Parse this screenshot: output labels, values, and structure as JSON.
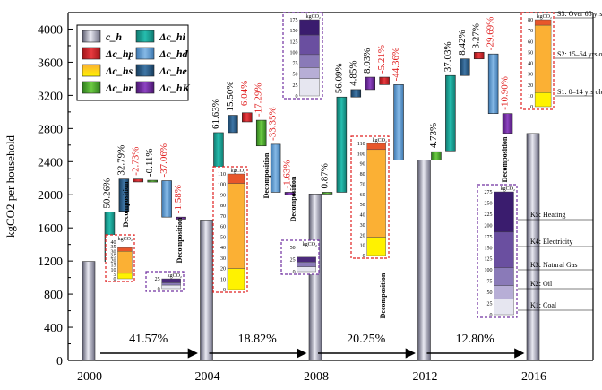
{
  "chart_data": {
    "type": "bar",
    "subtype": "waterfall-decomposition",
    "ylabel": "kgCO2 per household",
    "ylim": [
      0,
      4200
    ],
    "yticks": [
      0,
      400,
      800,
      1200,
      1600,
      2000,
      2400,
      2800,
      3200,
      3600,
      4000
    ],
    "xticks": [
      "2000",
      "2004",
      "2008",
      "2012",
      "2016"
    ],
    "legend": {
      "placement": "top-left",
      "items": [
        {
          "key": "ch",
          "label": "c_h",
          "color": "#c8c8d4"
        },
        {
          "key": "dhp",
          "label": "Δc_hp",
          "color": "#d9252a"
        },
        {
          "key": "dhs",
          "label": "Δc_hs",
          "color": "#fbb034"
        },
        {
          "key": "dhr",
          "label": "Δc_hr",
          "color": "#52b233"
        },
        {
          "key": "dhi",
          "label": "Δc_hi",
          "color": "#1aa89a"
        },
        {
          "key": "dhd",
          "label": "Δc_hd",
          "color": "#5b9bd5"
        },
        {
          "key": "dhe",
          "label": "Δc_he",
          "color": "#2d5f8a"
        },
        {
          "key": "dhk",
          "label": "Δc_hK",
          "color": "#7030a0"
        }
      ]
    },
    "bars": [
      {
        "period": 0,
        "label": "2000",
        "value": 1195
      },
      {
        "period": 1,
        "label": "2004",
        "value": 1695
      },
      {
        "period": 2,
        "label": "2008",
        "value": 2010
      },
      {
        "period": 3,
        "label": "2012",
        "value": 2420
      },
      {
        "period": 4,
        "label": "2016",
        "value": 2740
      }
    ],
    "periods": [
      {
        "growth": "41.57%",
        "steps": [
          {
            "key": "dhi",
            "from": 1195,
            "to": 1790,
            "pct": "50.26%",
            "red": false
          },
          {
            "key": "dhe",
            "from": 1800,
            "to": 2190,
            "pct": "32.79%",
            "red": false
          },
          {
            "key": "dhp",
            "from": 2190,
            "to": 2155,
            "pct": "-2.73%",
            "red": true
          },
          {
            "key": "dhr",
            "from": 2175,
            "to": 2170,
            "pct": "-0.11%",
            "red": false
          },
          {
            "key": "dhd",
            "from": 2170,
            "to": 1730,
            "pct": "-37.06%",
            "red": true
          },
          {
            "key": "dhk",
            "from": 1730,
            "to": 1705,
            "pct": "-1.58%",
            "red": true
          }
        ]
      },
      {
        "growth": "18.82%",
        "steps": [
          {
            "key": "dhi",
            "from": 1695,
            "to": 2750,
            "pct": "61.63%",
            "red": false
          },
          {
            "key": "dhe",
            "from": 2750,
            "to": 2960,
            "pct": "15.50%",
            "red": false
          },
          {
            "key": "dhp",
            "from": 2990,
            "to": 2880,
            "pct": "-6.04%",
            "red": true
          },
          {
            "key": "dhr",
            "from": 2900,
            "to": 2590,
            "pct": "-17.29%",
            "red": true
          },
          {
            "key": "dhd",
            "from": 2610,
            "to": 2030,
            "pct": "-33.35%",
            "red": true
          },
          {
            "key": "dhk",
            "from": 2030,
            "to": 2000,
            "pct": "-1.63%",
            "red": true
          }
        ]
      },
      {
        "growth": "20.25%",
        "steps": [
          {
            "key": "dhr",
            "from": 2010,
            "to": 2030,
            "pct": "0.87%",
            "red": false
          },
          {
            "key": "dhi",
            "from": 2030,
            "to": 3180,
            "pct": "56.09%",
            "red": false
          },
          {
            "key": "dhe",
            "from": 3180,
            "to": 3270,
            "pct": "4.85%",
            "red": false
          },
          {
            "key": "dhk",
            "from": 3270,
            "to": 3420,
            "pct": "8.03%",
            "red": false
          },
          {
            "key": "dhp",
            "from": 3420,
            "to": 3330,
            "pct": "-5.21%",
            "red": true
          },
          {
            "key": "dhd",
            "from": 3330,
            "to": 2420,
            "pct": "-44.36%",
            "red": true
          }
        ]
      },
      {
        "growth": "12.80%",
        "steps": [
          {
            "key": "dhr",
            "from": 2420,
            "to": 2520,
            "pct": "4.73%",
            "red": false
          },
          {
            "key": "dhi",
            "from": 2530,
            "to": 3440,
            "pct": "37.03%",
            "red": false
          },
          {
            "key": "dhe",
            "from": 3440,
            "to": 3640,
            "pct": "8.42%",
            "red": false
          },
          {
            "key": "dhp",
            "from": 3640,
            "to": 3720,
            "pct": "3.27%",
            "red": false
          },
          {
            "key": "dhd",
            "from": 3700,
            "to": 2980,
            "pct": "-29.69%",
            "red": true
          },
          {
            "key": "dhk",
            "from": 2980,
            "to": 2740,
            "pct": "-10.90%",
            "red": true
          }
        ]
      }
    ],
    "decomposition_label": "Decomposition",
    "inset_unit": "kgCO₂",
    "insets": [
      {
        "id": "hs-2000",
        "kind": "age",
        "ticks": [
          "40",
          "35",
          "30",
          "25",
          "20",
          "15",
          "10",
          "5",
          "0"
        ],
        "segments": [
          {
            "color": "#fff200",
            "value": 6
          },
          {
            "color": "#fbb034",
            "value": 24
          },
          {
            "color": "#e8562a",
            "value": 4
          }
        ],
        "max": 40
      },
      {
        "id": "hk-2000",
        "kind": "fuel",
        "ticks": [
          "25",
          "0"
        ],
        "segments": [
          {
            "color": "#e6e6f0",
            "value": 9
          },
          {
            "color": "#8a7ab8",
            "value": 6
          },
          {
            "color": "#4b2a7b",
            "value": 10
          }
        ],
        "max": 25
      },
      {
        "id": "hs-2004",
        "kind": "age",
        "ticks": [
          "110",
          "100",
          "90",
          "80",
          "70",
          "60",
          "50",
          "40",
          "30",
          "20",
          "10",
          "0"
        ],
        "segments": [
          {
            "color": "#fff200",
            "value": 20
          },
          {
            "color": "#fbb034",
            "value": 81
          },
          {
            "color": "#e8562a",
            "value": 9
          }
        ],
        "max": 110
      },
      {
        "id": "hk-2004",
        "kind": "fuel",
        "ticks": [
          "50",
          "25",
          "0"
        ],
        "segments": [
          {
            "color": "#e6e6f0",
            "value": 10
          },
          {
            "color": "#8a7ab8",
            "value": 10
          },
          {
            "color": "#4b2a7b",
            "value": 10
          }
        ],
        "max": 50
      },
      {
        "id": "hk-2008",
        "kind": "fuel",
        "ticks": [
          "175",
          "150",
          "125",
          "100",
          "75",
          "50",
          "25",
          "0"
        ],
        "segments": [
          {
            "color": "#e6e6f0",
            "value": 40
          },
          {
            "color": "#b7aed6",
            "value": 25
          },
          {
            "color": "#8a7ab8",
            "value": 30
          },
          {
            "color": "#6a4fa0",
            "value": 45
          },
          {
            "color": "#3a1c6e",
            "value": 35
          }
        ],
        "max": 175
      },
      {
        "id": "hs-2008",
        "kind": "age",
        "ticks": [
          "110",
          "100",
          "90",
          "80",
          "70",
          "60",
          "50",
          "40",
          "30",
          "20",
          "10",
          "0"
        ],
        "segments": [
          {
            "color": "#fff200",
            "value": 18
          },
          {
            "color": "#fbb034",
            "value": 86
          },
          {
            "color": "#e8562a",
            "value": 6
          }
        ],
        "max": 110
      },
      {
        "id": "hs-2012",
        "kind": "age",
        "ticks": [
          "80",
          "70",
          "60",
          "50",
          "40",
          "30",
          "20",
          "10",
          "0"
        ],
        "segments": [
          {
            "color": "#fff200",
            "value": 13
          },
          {
            "color": "#fbb034",
            "value": 62
          },
          {
            "color": "#e8562a",
            "value": 5
          }
        ],
        "max": 80
      },
      {
        "id": "hk-2012",
        "kind": "fuel",
        "ticks": [
          "275",
          "250",
          "225",
          "200",
          "175",
          "150",
          "125",
          "100",
          "75",
          "50",
          "25",
          "0"
        ],
        "segments": [
          {
            "color": "#e6e6f0",
            "value": 35
          },
          {
            "color": "#b7aed6",
            "value": 30
          },
          {
            "color": "#8a7ab8",
            "value": 40
          },
          {
            "color": "#6a4fa0",
            "value": 80
          },
          {
            "color": "#3a1c6e",
            "value": 90
          }
        ],
        "max": 275
      }
    ],
    "age_labels": [
      "S3: Over 65 yrs old",
      "S2: 15–64 yrs old",
      "S1: 0–14 yrs old"
    ],
    "fuel_labels": [
      "K5: Heating",
      "K4: Electricity",
      "K3: Natural Gas",
      "K2: Oil",
      "K1: Coal"
    ]
  }
}
